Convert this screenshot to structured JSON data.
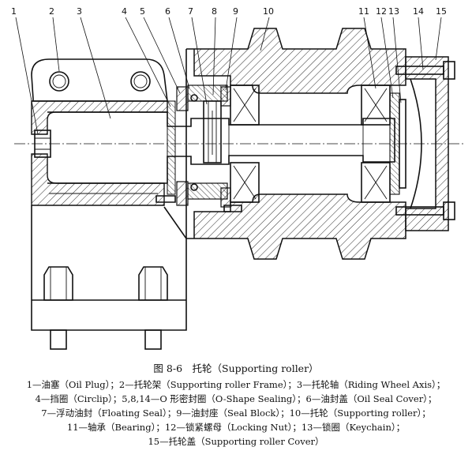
{
  "figure": {
    "callouts": [
      "1",
      "2",
      "3",
      "4",
      "5",
      "6",
      "7",
      "8",
      "9",
      "10",
      "11",
      "12",
      "13",
      "14",
      "15"
    ],
    "title": "图 8-6　托轮（Supporting roller）",
    "caption_lines": [
      "1—油塞（Oil Plug）；2—托轮架（Supporting roller Frame）；3—托轮轴（Riding Wheel Axis）；",
      "4—挡圈（Circlip）；5,8,14—O 形密封圈（O-Shape Sealing）；6—油封盖（Oil Seal Cover）；",
      "7—浮动油封（Floating Seal）；9—油封座（Seal Block）；10—托轮（Supporting roller）；",
      "11—轴承（Bearing）；12—锁紧螺母（Locking Nut）；13—锁圈（Keychain）；",
      "15—托轮盖（Supporting roller Cover）"
    ]
  }
}
